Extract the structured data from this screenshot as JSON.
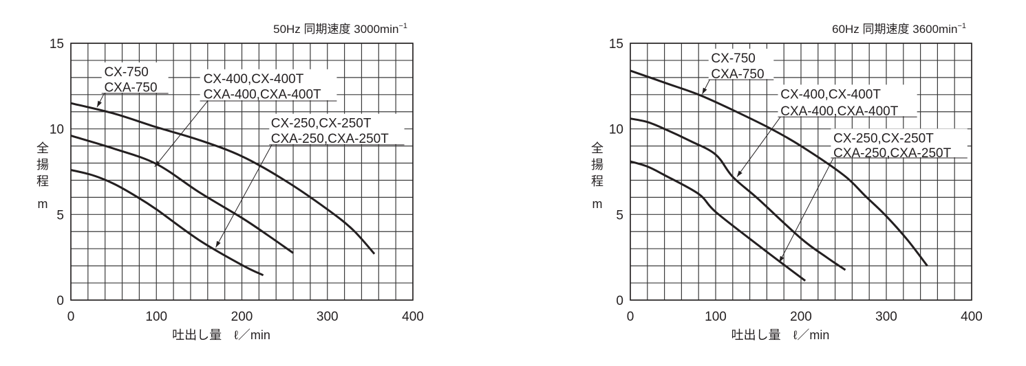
{
  "chart_data": [
    {
      "type": "line",
      "title": "50Hz 同期速度 3000min",
      "title_sup": "-1",
      "xlabel": "吐出し量　ℓ／min",
      "ylabel_chars": [
        "全",
        "揚",
        "程"
      ],
      "ylabel_unit": "m",
      "xlim": [
        0,
        400
      ],
      "ylim": [
        0,
        15
      ],
      "x_ticks": [
        0,
        100,
        200,
        300,
        400
      ],
      "y_ticks": [
        0,
        5,
        10,
        15
      ],
      "x_grid_step": 20,
      "y_grid_step": 1,
      "grid": true,
      "series": [
        {
          "name": "CX-750 / CXA-750",
          "label_lines": [
            "CX-750",
            "CXA-750"
          ],
          "points": [
            [
              0,
              11.5
            ],
            [
              50,
              10.9
            ],
            [
              100,
              10.1
            ],
            [
              150,
              9.35
            ],
            [
              200,
              8.4
            ],
            [
              250,
              7.0
            ],
            [
              300,
              5.3
            ],
            [
              330,
              4.1
            ],
            [
              355,
              2.7
            ]
          ]
        },
        {
          "name": "CX-400,CX-400T / CXA-400,CXA-400T",
          "label_lines": [
            "CX-400,CX-400T",
            "CXA-400,CXA-400T"
          ],
          "points": [
            [
              0,
              9.6
            ],
            [
              50,
              8.85
            ],
            [
              100,
              7.95
            ],
            [
              150,
              6.3
            ],
            [
              200,
              4.8
            ],
            [
              230,
              3.8
            ],
            [
              260,
              2.75
            ]
          ]
        },
        {
          "name": "CX-250,CX-250T / CXA-250,CXA-250T",
          "label_lines": [
            "CX-250,CX-250T",
            "CXA-250,CXA-250T"
          ],
          "points": [
            [
              0,
              7.6
            ],
            [
              25,
              7.3
            ],
            [
              50,
              6.8
            ],
            [
              75,
              6.1
            ],
            [
              100,
              5.3
            ],
            [
              150,
              3.5
            ],
            [
              200,
              2.05
            ],
            [
              225,
              1.45
            ]
          ]
        }
      ]
    },
    {
      "type": "line",
      "title": "60Hz 同期速度 3600min",
      "title_sup": "-1",
      "xlabel": "吐出し量　ℓ／min",
      "ylabel_chars": [
        "全",
        "揚",
        "程"
      ],
      "ylabel_unit": "m",
      "xlim": [
        0,
        400
      ],
      "ylim": [
        0,
        15
      ],
      "x_ticks": [
        0,
        100,
        200,
        300,
        400
      ],
      "y_ticks": [
        0,
        5,
        10,
        15
      ],
      "x_grid_step": 20,
      "y_grid_step": 1,
      "grid": true,
      "series": [
        {
          "name": "CX-750 / CXA-750",
          "label_lines": [
            "CX-750",
            "CXA-750"
          ],
          "points": [
            [
              0,
              13.4
            ],
            [
              40,
              12.7
            ],
            [
              80,
              12.0
            ],
            [
              120,
              11.1
            ],
            [
              165,
              10.0
            ],
            [
              200,
              9.0
            ],
            [
              250,
              7.3
            ],
            [
              275,
              6.1
            ],
            [
              300,
              4.9
            ],
            [
              325,
              3.5
            ],
            [
              348,
              2.0
            ]
          ]
        },
        {
          "name": "CX-400,CX-400T / CXA-400,CXA-400T",
          "label_lines": [
            "CX-400,CX-400T",
            "CXA-400,CXA-400T"
          ],
          "points": [
            [
              0,
              10.6
            ],
            [
              20,
              10.4
            ],
            [
              40,
              10.0
            ],
            [
              70,
              9.3
            ],
            [
              100,
              8.5
            ],
            [
              120,
              7.2
            ],
            [
              150,
              5.9
            ],
            [
              200,
              3.6
            ],
            [
              230,
              2.5
            ],
            [
              252,
              1.76
            ]
          ]
        },
        {
          "name": "CX-250,CX-250T / CXA-250,CXA-250T",
          "label_lines": [
            "CX-250,CX-250T",
            "CXA-250,CXA-250T"
          ],
          "points": [
            [
              0,
              8.1
            ],
            [
              20,
              7.8
            ],
            [
              40,
              7.3
            ],
            [
              80,
              6.2
            ],
            [
              100,
              5.15
            ],
            [
              150,
              3.2
            ],
            [
              175,
              2.25
            ],
            [
              205,
              1.13
            ]
          ]
        }
      ]
    }
  ]
}
